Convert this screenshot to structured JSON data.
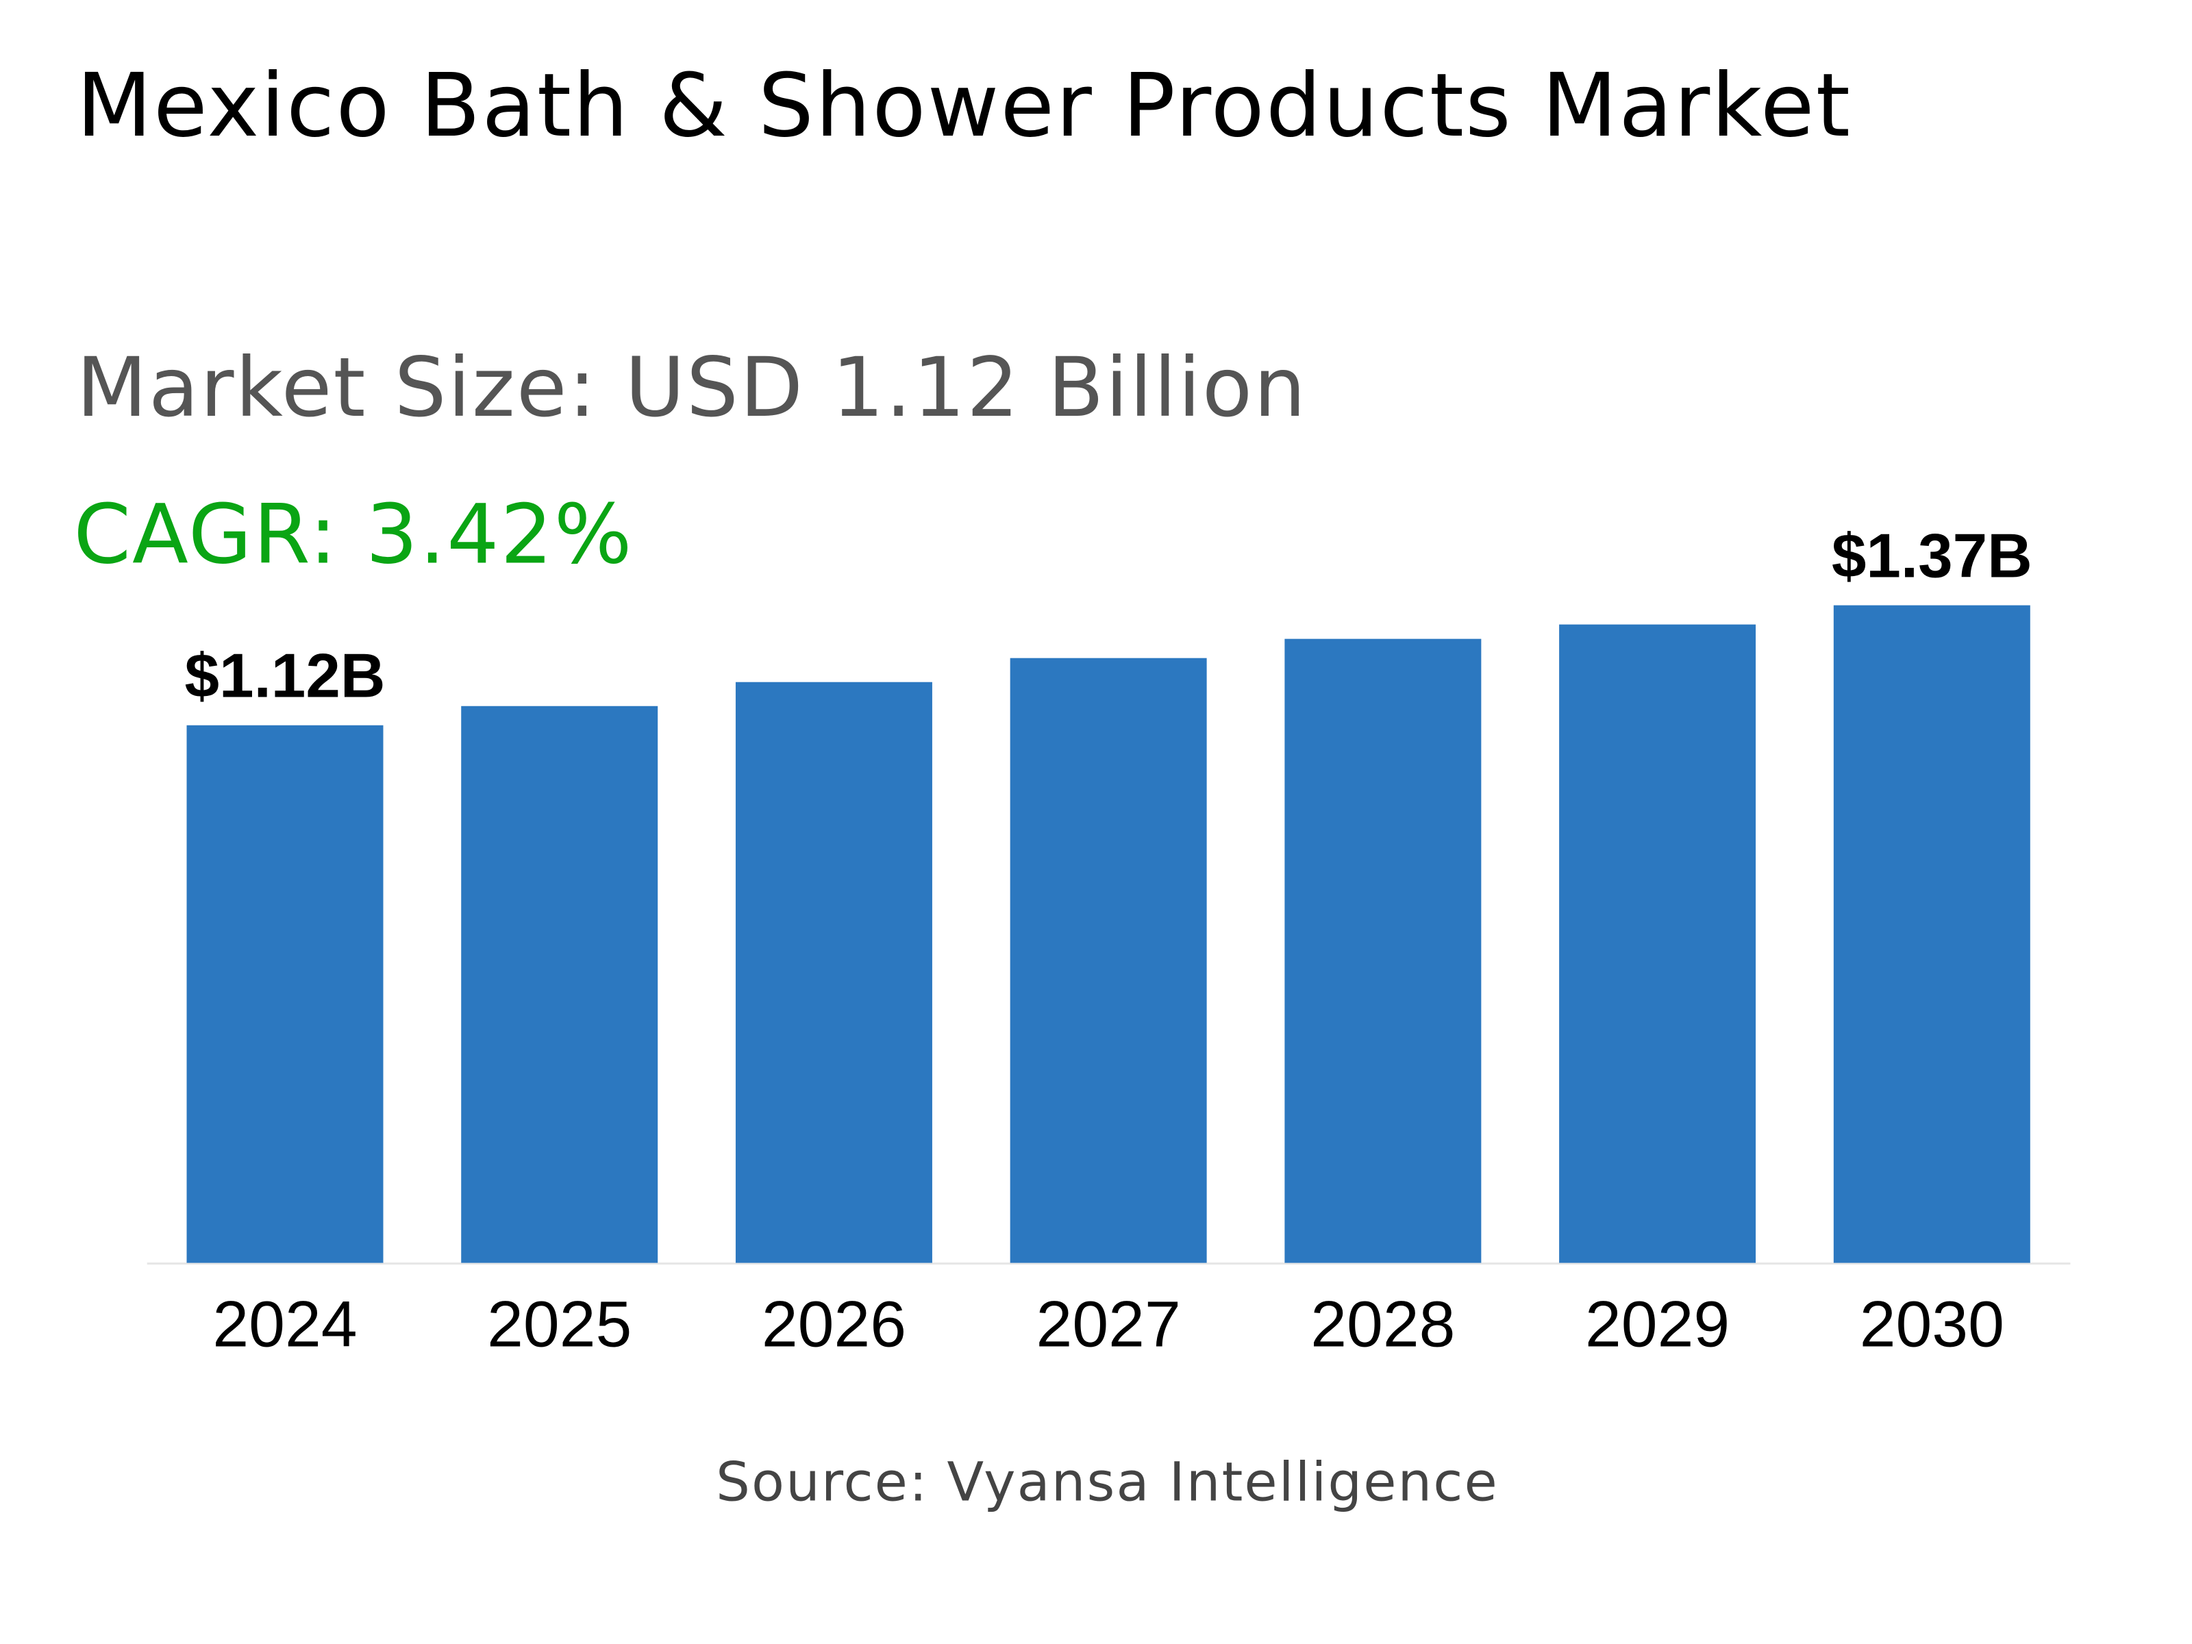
{
  "title": "Mexico Bath & Shower Products Market",
  "market_size": "Market Size: USD 1.12 Billion",
  "cagr": "CAGR: 3.42%",
  "source": "Source: Vyansa Intelligence",
  "colors": {
    "bar": "#2c78c0",
    "cagr": "#0aa514"
  },
  "chart_data": {
    "type": "bar",
    "title": "Mexico Bath & Shower Products Market",
    "categories": [
      "2024",
      "2025",
      "2026",
      "2027",
      "2028",
      "2029",
      "2030"
    ],
    "values": [
      1.12,
      1.16,
      1.21,
      1.26,
      1.3,
      1.33,
      1.37
    ],
    "unit": "USD Billion",
    "data_labels": [
      {
        "index": 0,
        "text": "$1.12B"
      },
      {
        "index": 6,
        "text": "$1.37B"
      }
    ],
    "xlabel": "",
    "ylabel": "",
    "ylim": [
      0,
      1.37
    ],
    "grid": false,
    "legend": "none"
  }
}
